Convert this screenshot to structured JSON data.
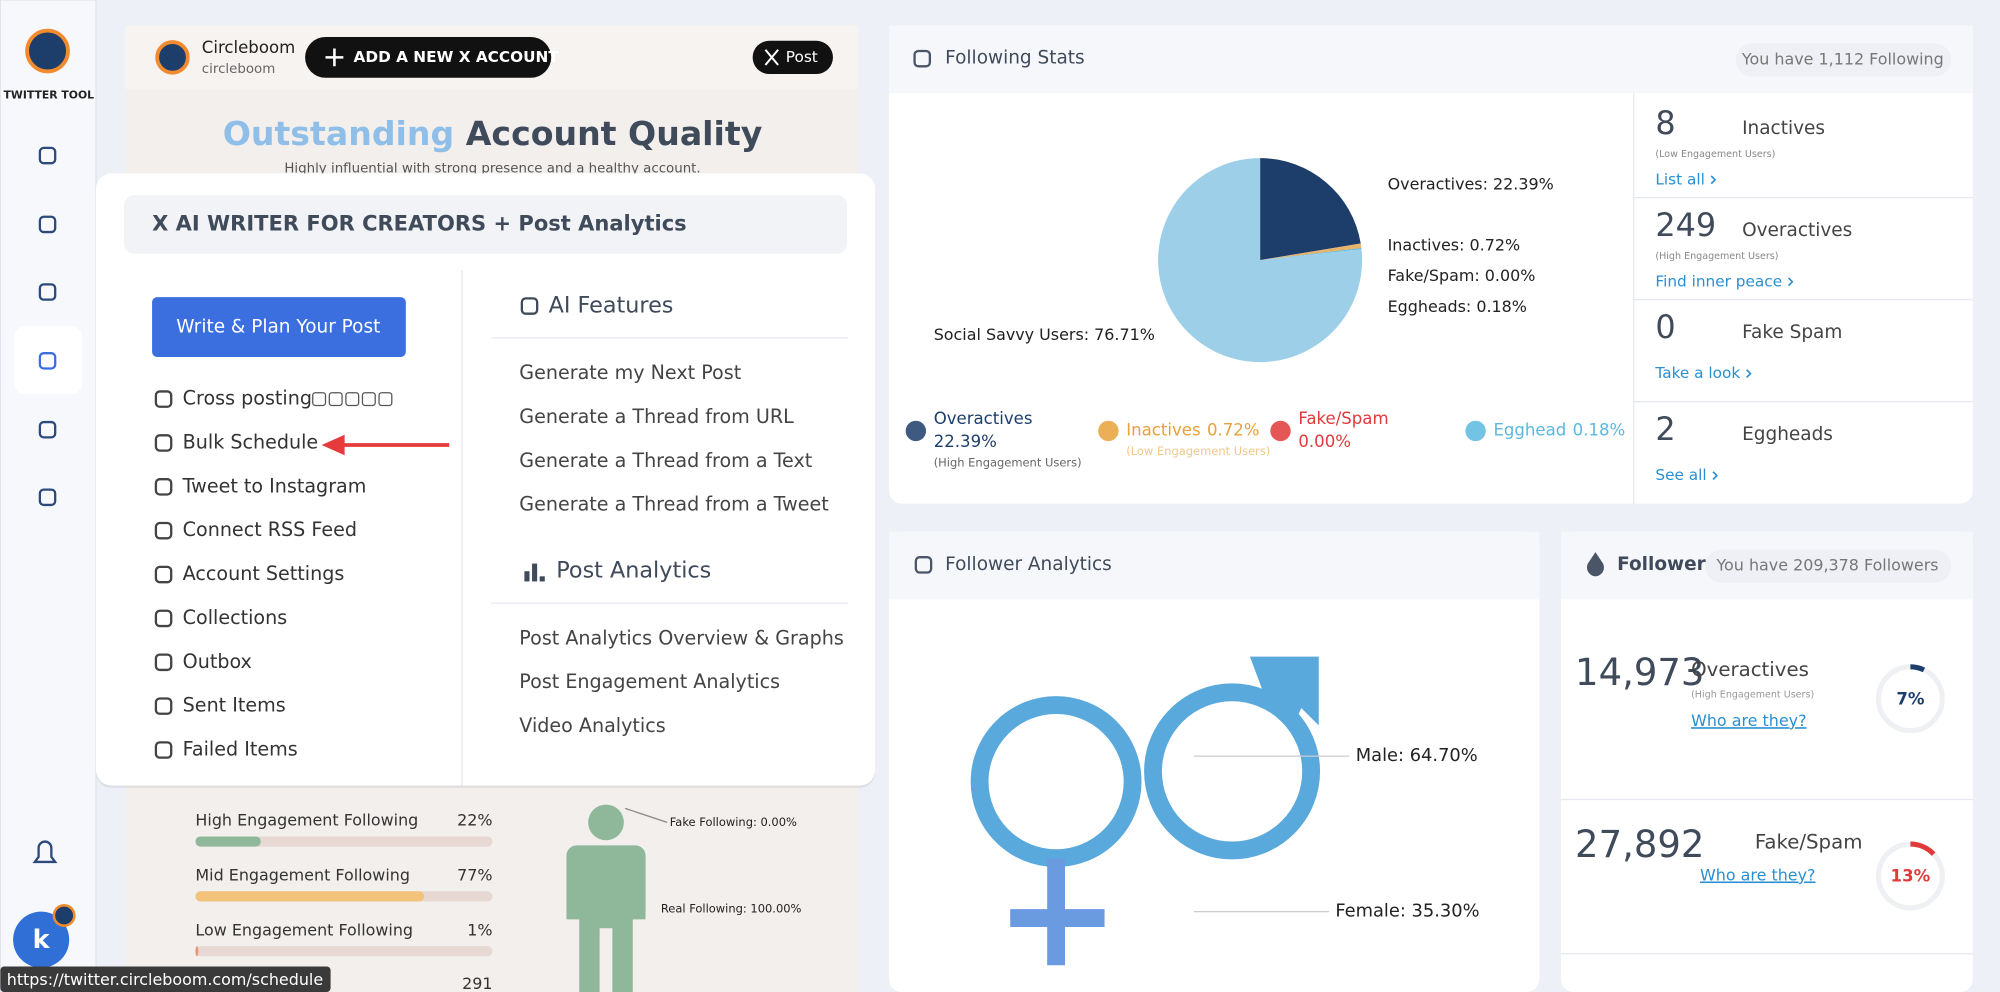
{
  "sidebar": {
    "brand": "TWITTER TOOL",
    "avatar": "k"
  },
  "profile": {
    "name": "Circleboom",
    "handle": "circleboom",
    "add_button": "ADD A NEW X ACCOUNT",
    "post_button": "Post"
  },
  "quality": {
    "highlight": "Outstanding",
    "title": "Account Quality",
    "subtitle": "Highly influential with strong presence and a healthy account."
  },
  "menu": {
    "header": "X AI WRITER FOR CREATORS + Post Analytics",
    "cta": "Write & Plan Your Post",
    "items": [
      "Cross posting",
      "Bulk Schedule",
      "Tweet to Instagram",
      "Connect RSS Feed",
      "Account Settings",
      "Collections",
      "Outbox",
      "Sent Items",
      "Failed Items"
    ],
    "ai_title": "AI Features",
    "ai_items": [
      "Generate my Next Post",
      "Generate a Thread from URL",
      "Generate a Thread from a Text",
      "Generate a Thread from a Tweet"
    ],
    "analytics_title": "Post Analytics",
    "analytics_items": [
      "Post Analytics Overview & Graphs",
      "Post Engagement Analytics",
      "Video Analytics"
    ]
  },
  "engagement": {
    "rows": [
      {
        "label": "High Engagement Following",
        "value": 22,
        "value_label": "22%",
        "color": "#8fb89a"
      },
      {
        "label": "Mid Engagement Following",
        "value": 77,
        "value_label": "77%",
        "color": "#f3c27b"
      },
      {
        "label": "Low Engagement Following",
        "value": 1,
        "value_label": "1%",
        "color": "#e8967a"
      }
    ],
    "next_value": "291",
    "fake": "Fake Following: 0.00%",
    "real": "Real Following: 100.00%"
  },
  "following_stats": {
    "title": "Following Stats",
    "badge": "You have 1,112 Following",
    "pie": [
      {
        "label": "Overactives: 22.39%",
        "value": 22.39,
        "color": "#1d3d6b"
      },
      {
        "label": "Inactives: 0.72%",
        "value": 0.72,
        "color": "#e8b46a"
      },
      {
        "label": "Fake/Spam: 0.00%",
        "value": 0,
        "color": "#e03a3a"
      },
      {
        "label": "Eggheads: 0.18%",
        "value": 0.18,
        "color": "#5ab8e0"
      },
      {
        "label": "Social Savvy Users: 76.71%",
        "value": 76.71,
        "color": "#9dd0e8"
      }
    ],
    "legend": [
      {
        "name": "Overactives",
        "value": "22.39%",
        "note": "(High Engagement Users)",
        "color": "#1d3d6b"
      },
      {
        "name": "Inactives",
        "value": "0.72%",
        "note": "(Low Engagement Users)",
        "color": "#e8a13a"
      },
      {
        "name": "Fake/Spam",
        "value": "0.00%",
        "color": "#e03a3a"
      },
      {
        "name": "Egghead",
        "value": "0.18%",
        "color": "#5ab8e0"
      }
    ],
    "cards": [
      {
        "count": "8",
        "name": "Inactives",
        "note": "(Low Engagement Users)",
        "link": "List all"
      },
      {
        "count": "249",
        "name": "Overactives",
        "note": "(High Engagement Users)",
        "link": "Find inner peace"
      },
      {
        "count": "0",
        "name": "Fake Spam",
        "link": "Take a look"
      },
      {
        "count": "2",
        "name": "Eggheads",
        "link": "See all"
      }
    ]
  },
  "follower_analytics": {
    "title": "Follower Analytics",
    "male": "Male: 64.70%",
    "female": "Female: 35.30%"
  },
  "follower_stats": {
    "title": "Follower Stats",
    "badge": "You have 209,378 Followers",
    "cards": [
      {
        "count": "14,973",
        "name": "Overactives",
        "note": "(High Engagement Users)",
        "link": "Who are they?",
        "ring": 7,
        "ring_label": "7%",
        "color": "#1d3d6b"
      },
      {
        "count": "27,892",
        "name": "Fake/Spam",
        "link": "Who are they?",
        "ring": 13,
        "ring_label": "13%",
        "color": "#e03a3a"
      }
    ]
  },
  "status_url": "https://twitter.circleboom.com/schedule"
}
